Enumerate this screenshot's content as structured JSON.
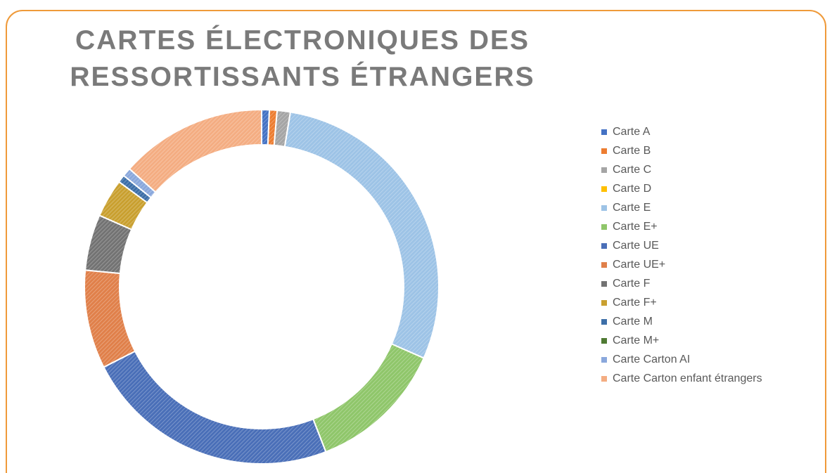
{
  "chart_data": {
    "type": "donut",
    "title": "CARTES ÉLECTRONIQUES DES RESSORTISSANTS ÉTRANGERS",
    "categories": [
      "Carte A",
      "Carte B",
      "Carte C",
      "Carte D",
      "Carte E",
      "Carte E+",
      "Carte UE",
      "Carte UE+",
      "Carte F",
      "Carte F+",
      "Carte M",
      "Carte M+",
      "Carte Carton AI",
      "Carte Carton enfant étrangers"
    ],
    "values": [
      0.7,
      0.7,
      1.2,
      0,
      29,
      12.5,
      23.4,
      9,
      5.1,
      3.5,
      0.7,
      0,
      0.8,
      13.4
    ],
    "colors": [
      "#4472c4",
      "#ed7d31",
      "#a5a5a5",
      "#ffc000",
      "#9dc3e6",
      "#8fc66a",
      "#4a6fb8",
      "#e0804a",
      "#737373",
      "#c9a030",
      "#3d6fa8",
      "#4f7a33",
      "#8aa8dc",
      "#f4ad82"
    ],
    "legend": "right"
  }
}
